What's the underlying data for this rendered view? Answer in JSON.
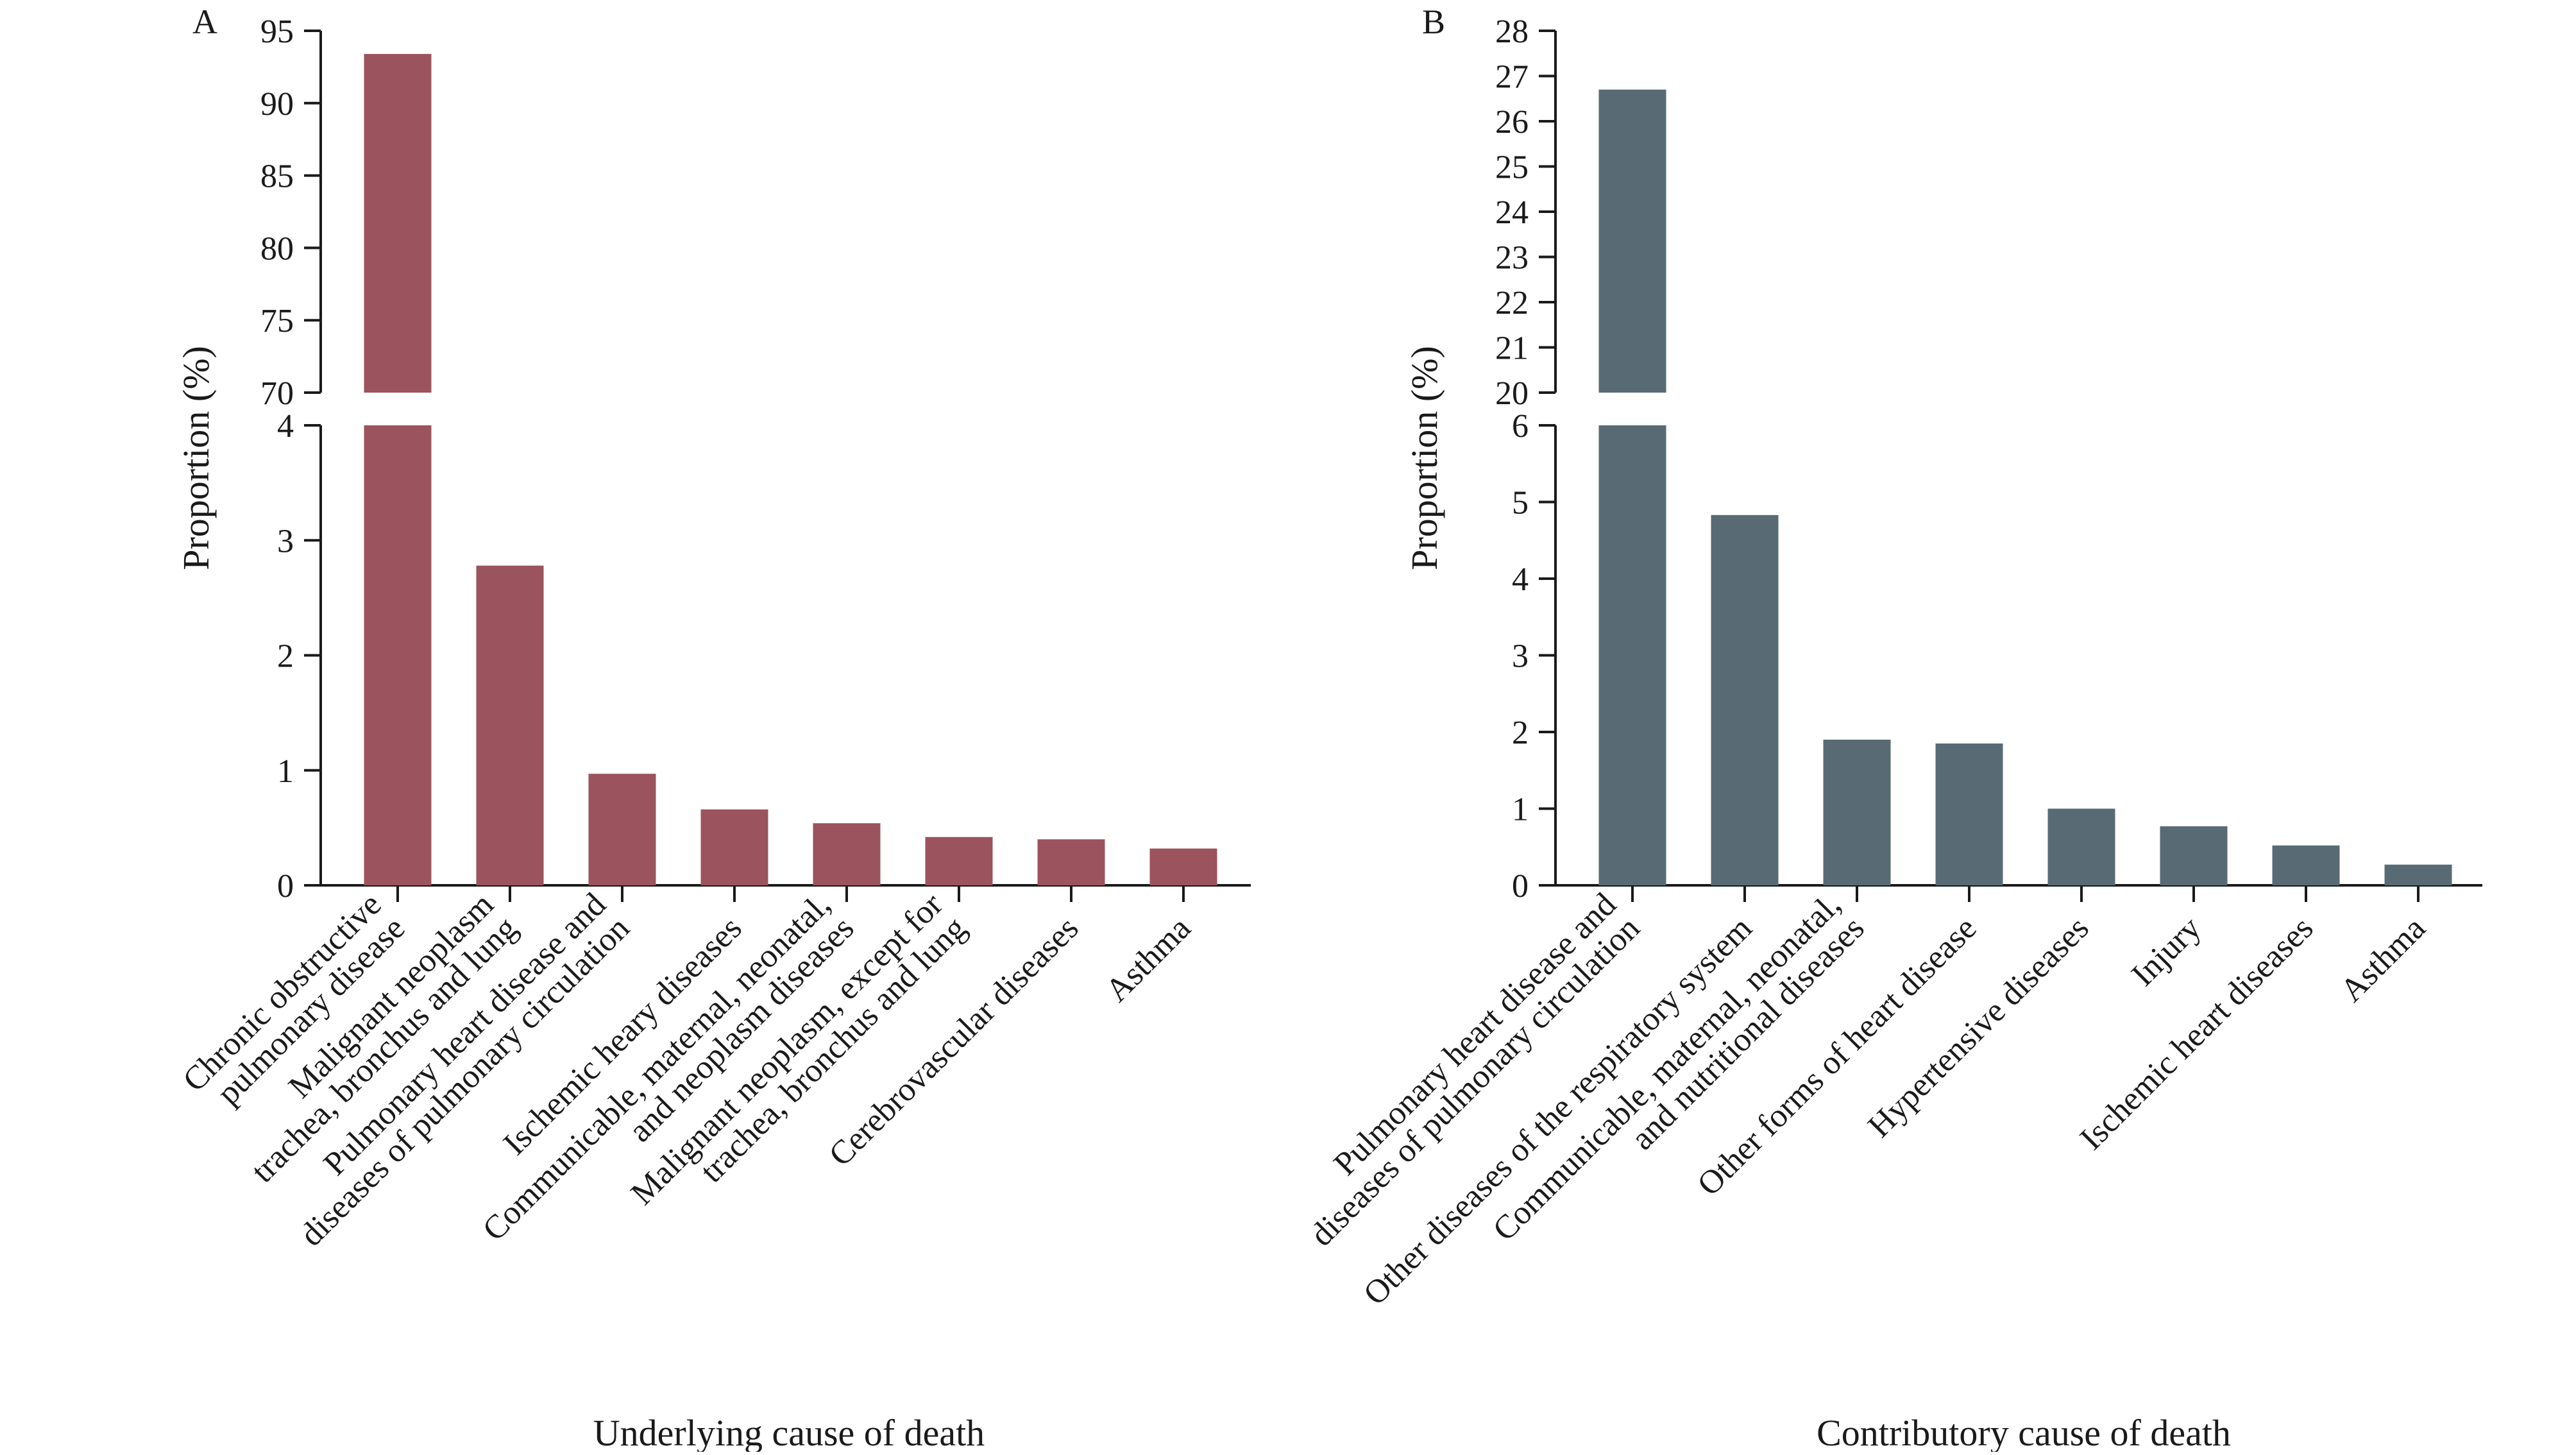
{
  "chart_data": [
    {
      "type": "bar",
      "panel_label": "A",
      "title": "",
      "xlabel": "Underlying cause of death",
      "ylabel": "Proportion (%)",
      "color": "#9b535d",
      "y_axis_break": true,
      "ylim_lower": [
        0,
        4
      ],
      "yticks_lower": [
        "0",
        "1",
        "2",
        "3",
        "4"
      ],
      "ylim_upper": [
        70,
        95
      ],
      "yticks_upper": [
        "70",
        "75",
        "80",
        "85",
        "90",
        "95"
      ],
      "categories": [
        [
          "Chronic obstructive",
          "pulmonary disease"
        ],
        [
          "Malignant neoplasm",
          "trachea, bronchus and lung"
        ],
        [
          "Pulmonary heart disease and",
          "diseases of pulmonary circulation"
        ],
        [
          "Ischemic heary diseases"
        ],
        [
          "Communicable, maternal, neonatal,",
          "and neoplasm diseases"
        ],
        [
          "Malignant neoplasm, except for",
          "trachea, bronchus and lung"
        ],
        [
          "Cerebrovascular diseases"
        ],
        [
          "Asthma"
        ]
      ],
      "values": [
        93.4,
        2.78,
        0.97,
        0.66,
        0.54,
        0.42,
        0.4,
        0.32
      ]
    },
    {
      "type": "bar",
      "panel_label": "B",
      "title": "",
      "xlabel": "Contributory cause of death",
      "ylabel": "Proportion (%)",
      "color": "#586b75",
      "y_axis_break": true,
      "ylim_lower": [
        0,
        6
      ],
      "yticks_lower": [
        "0",
        "1",
        "2",
        "3",
        "4",
        "5",
        "6"
      ],
      "ylim_upper": [
        20,
        28
      ],
      "yticks_upper": [
        "20",
        "21",
        "22",
        "23",
        "24",
        "25",
        "26",
        "27",
        "28"
      ],
      "categories": [
        [
          "Pulmonary heart disease and",
          "diseases of pulmonary circulation"
        ],
        [
          "Other diseases of the respiratory system"
        ],
        [
          "Communicable, maternal, neonatal,",
          "and nutritional diseases"
        ],
        [
          "Other forms of heart disease"
        ],
        [
          "Hypertensive diseases"
        ],
        [
          "Injury"
        ],
        [
          "Ischemic heart diseases"
        ],
        [
          "Asthma"
        ]
      ],
      "values": [
        26.7,
        4.83,
        1.9,
        1.85,
        1.0,
        0.77,
        0.52,
        0.27
      ]
    }
  ]
}
